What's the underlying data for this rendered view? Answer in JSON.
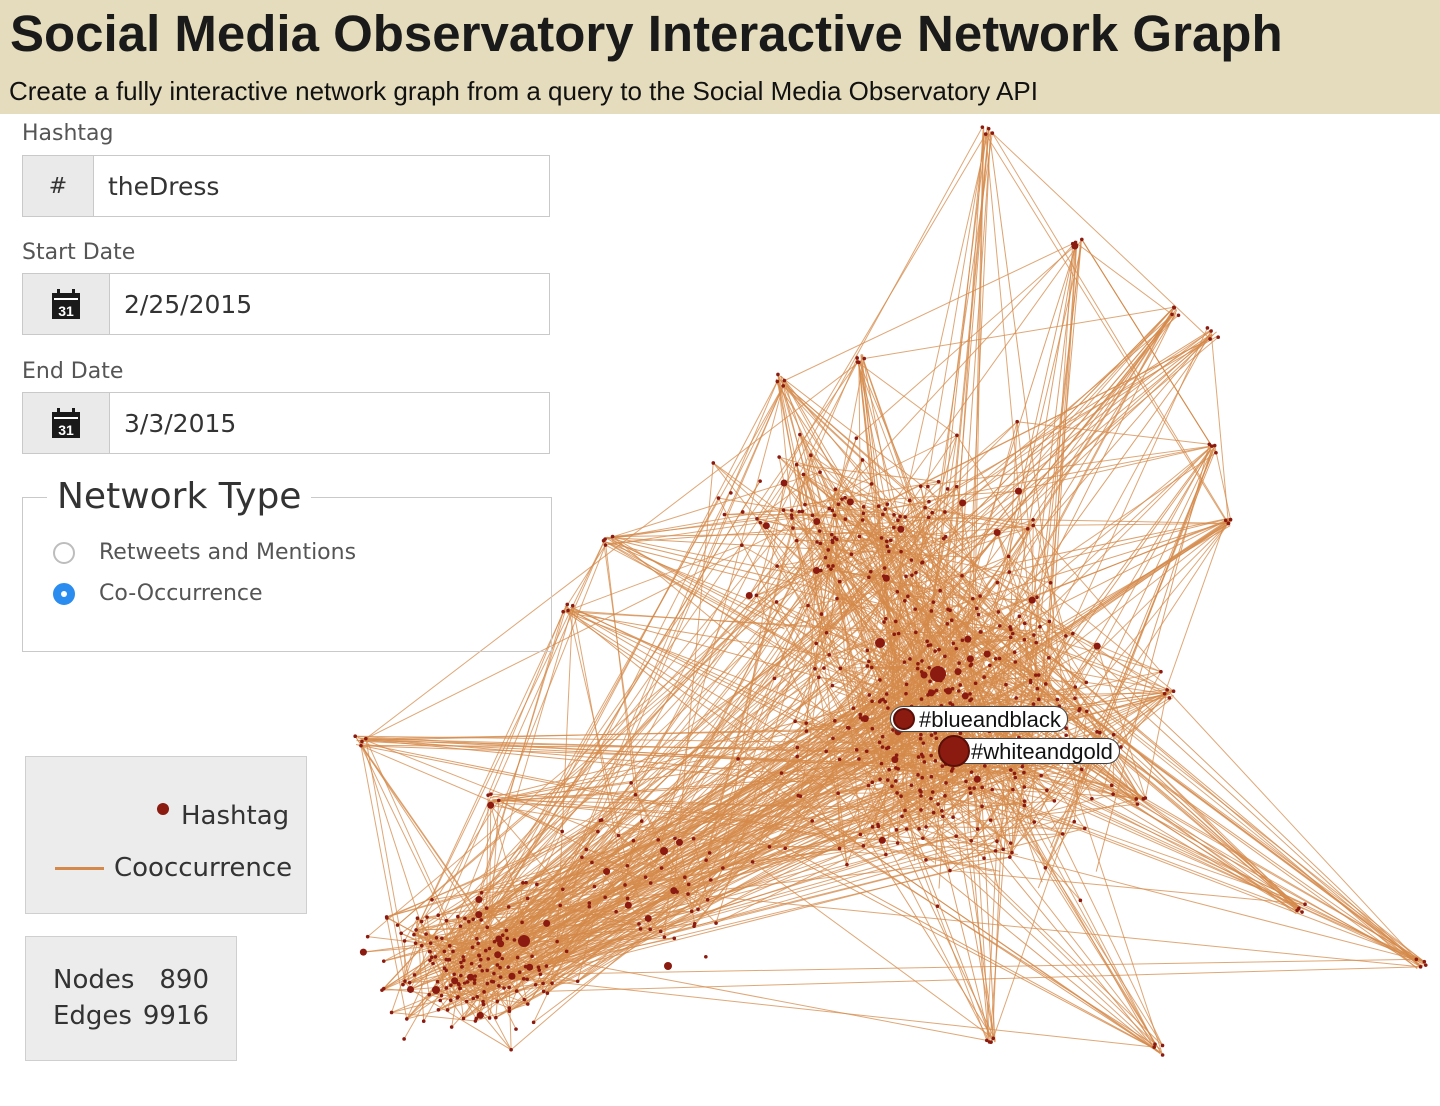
{
  "header": {
    "title": "Social Media Observatory Interactive Network Graph",
    "subtitle": "Create a fully interactive network graph from a query to the Social Media Observatory API"
  },
  "form": {
    "hashtag": {
      "label": "Hashtag",
      "prefix": "#",
      "value": "theDress"
    },
    "start_date": {
      "label": "Start Date",
      "icon_text": "31",
      "icon": "calendar-icon",
      "value": "2/25/2015"
    },
    "end_date": {
      "label": "End Date",
      "icon_text": "31",
      "icon": "calendar-icon",
      "value": "3/3/2015"
    },
    "network_type": {
      "title": "Network Type",
      "options": [
        "Retweets and Mentions",
        "Co-Occurrence"
      ],
      "selected": "Co-Occurrence"
    }
  },
  "graph": {
    "labels": {
      "blue": "#blueandblack",
      "white": "#whiteandgold"
    },
    "colors": {
      "edge": "#d4894a",
      "node": "#8b1a10"
    }
  },
  "legend": {
    "node_label": "Hashtag",
    "edge_label": "Cooccurrence"
  },
  "stats": {
    "nodes_label": "Nodes",
    "nodes_value": "890",
    "edges_label": "Edges",
    "edges_value": "9916"
  }
}
